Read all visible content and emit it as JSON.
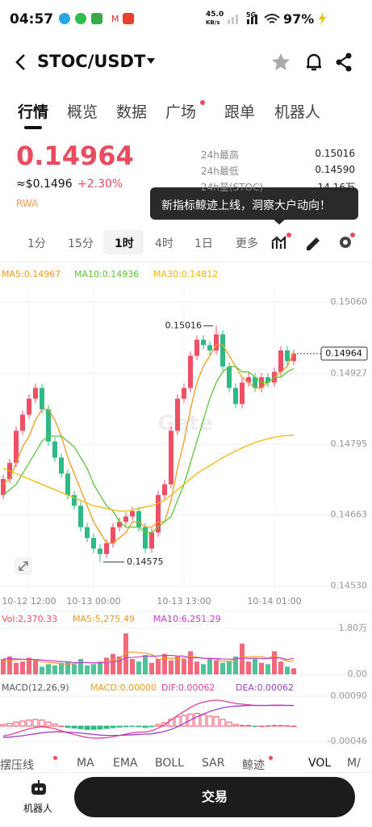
{
  "status_bar": {
    "time": "04:57",
    "net_speed": "45.0",
    "net_unit": "KB/s",
    "network": "5G",
    "battery": "97%"
  },
  "header": {
    "pair": "STOC/USDT"
  },
  "tabs": [
    "行情",
    "概览",
    "数据",
    "广场",
    "跟单",
    "机器人"
  ],
  "price": {
    "last": "0.14964",
    "usd": "≈$0.1496",
    "change": "+2.30%",
    "tag": "RWA"
  },
  "stats": [
    {
      "label": "24h最高",
      "value": "0.15016"
    },
    {
      "label": "24h最低",
      "value": "0.14590"
    },
    {
      "label": "24h量(STOC)",
      "value": "14.16万"
    }
  ],
  "tooltip": "新指标鲸迹上线，洞察大户动向！",
  "timeframes": [
    "1分",
    "15分",
    "1时",
    "4时",
    "1日",
    "更多"
  ],
  "indicator_tabs": [
    "摆压线",
    "MA",
    "EMA",
    "BOLL",
    "SAR",
    "鲸迹",
    "VOL",
    "M/"
  ],
  "bottom": {
    "robot": "机器人",
    "trade": "交易"
  },
  "chart_data": [
    {
      "type": "candlestick",
      "watermark": "Gate",
      "up_color": "#ef4f64",
      "down_color": "#2fb985",
      "grid": true,
      "categories": [
        null,
        null,
        null,
        null,
        "10-12 12:00",
        null,
        null,
        null,
        null,
        null,
        null,
        null,
        null,
        null,
        "10-13 00:00",
        null,
        null,
        null,
        null,
        null,
        null,
        null,
        null,
        null,
        null,
        null,
        null,
        null,
        "10-13 13:00",
        null,
        null,
        null,
        null,
        null,
        null,
        null,
        null,
        null,
        null,
        null,
        null,
        null,
        "10-14 01:00",
        null,
        null,
        null
      ],
      "open": [
        0.147,
        0.1473,
        0.1476,
        0.1482,
        0.1485,
        0.1488,
        0.149,
        0.1486,
        0.148,
        0.1477,
        0.1474,
        0.147,
        0.1468,
        0.1464,
        0.1462,
        0.146,
        0.1459,
        0.1461,
        0.1464,
        0.1465,
        0.1466,
        0.1467,
        0.1464,
        0.146,
        0.1463,
        0.147,
        0.1472,
        0.1482,
        0.1488,
        0.149,
        0.1496,
        0.1499,
        0.1498,
        0.1497,
        0.15,
        0.1494,
        0.149,
        0.1487,
        0.1491,
        0.1492,
        0.149,
        0.1492,
        0.1491,
        0.1493,
        0.1497,
        0.1495
      ],
      "high": [
        0.14738,
        0.14768,
        0.14828,
        0.14858,
        0.14888,
        0.14908,
        0.14908,
        0.14868,
        0.14808,
        0.14778,
        0.14748,
        0.14708,
        0.14688,
        0.14648,
        0.14628,
        0.14608,
        0.14618,
        0.14648,
        0.14658,
        0.14668,
        0.14678,
        0.14678,
        0.14648,
        0.14638,
        0.14708,
        0.14728,
        0.14828,
        0.14888,
        0.14908,
        0.14968,
        0.14998,
        0.14998,
        0.14988,
        0.15016,
        0.15008,
        0.14948,
        0.14908,
        0.14918,
        0.14928,
        0.14928,
        0.14928,
        0.14928,
        0.14938,
        0.14978,
        0.14978,
        0.14972
      ],
      "low": [
        0.14692,
        0.14722,
        0.14752,
        0.14812,
        0.14842,
        0.14872,
        0.14852,
        0.14792,
        0.14762,
        0.14732,
        0.14692,
        0.14672,
        0.14632,
        0.14612,
        0.14592,
        0.14575,
        0.14582,
        0.14602,
        0.14632,
        0.14642,
        0.14652,
        0.14632,
        0.14592,
        0.14592,
        0.14622,
        0.14692,
        0.14712,
        0.14812,
        0.14872,
        0.14892,
        0.14952,
        0.14972,
        0.14962,
        0.14962,
        0.14932,
        0.14892,
        0.14862,
        0.14862,
        0.14902,
        0.14892,
        0.14892,
        0.14902,
        0.14902,
        0.14922,
        0.14942,
        0.14942
      ],
      "close": [
        0.1473,
        0.1476,
        0.1482,
        0.1485,
        0.1488,
        0.149,
        0.1486,
        0.148,
        0.1477,
        0.1474,
        0.147,
        0.1468,
        0.1464,
        0.1462,
        0.146,
        0.1459,
        0.1461,
        0.1464,
        0.1465,
        0.1466,
        0.1467,
        0.1464,
        0.146,
        0.1463,
        0.147,
        0.1472,
        0.1482,
        0.1488,
        0.149,
        0.1496,
        0.1499,
        0.1498,
        0.1497,
        0.15,
        0.1494,
        0.149,
        0.1487,
        0.1491,
        0.1492,
        0.149,
        0.1492,
        0.1491,
        0.1493,
        0.1497,
        0.1495,
        0.14964
      ],
      "series": [
        {
          "name": "MA5:0.14967",
          "color": "#f39a1e",
          "values": [
            0.1472,
            0.1473,
            0.1476,
            0.1479,
            0.1481,
            0.1484,
            0.1486,
            0.1486,
            0.1484,
            0.1481,
            0.1477,
            0.1474,
            0.1471,
            0.1468,
            0.1465,
            0.1463,
            0.1461,
            0.1461,
            0.1462,
            0.1463,
            0.1465,
            0.1465,
            0.1464,
            0.1464,
            0.1465,
            0.1465,
            0.1469,
            0.1475,
            0.148,
            0.1486,
            0.1491,
            0.1494,
            0.1496,
            0.1498,
            0.1498,
            0.1496,
            0.1494,
            0.1492,
            0.1491,
            0.149,
            0.149,
            0.1491,
            0.1492,
            0.1493,
            0.1494,
            0.14967
          ]
        },
        {
          "name": "MA10:0.14936",
          "color": "#5cc53a",
          "values": [
            0.147,
            0.1471,
            0.1472,
            0.1474,
            0.1476,
            0.1478,
            0.148,
            0.1481,
            0.1481,
            0.1481,
            0.148,
            0.1479,
            0.1477,
            0.1475,
            0.1472,
            0.147,
            0.1468,
            0.1467,
            0.1465,
            0.1464,
            0.1464,
            0.1464,
            0.1463,
            0.1463,
            0.1464,
            0.1465,
            0.1466,
            0.1469,
            0.1472,
            0.1476,
            0.148,
            0.1484,
            0.1488,
            0.1491,
            0.1493,
            0.1494,
            0.1494,
            0.1493,
            0.1493,
            0.1492,
            0.1491,
            0.1491,
            0.1492,
            0.1492,
            0.1493,
            0.14936
          ]
        },
        {
          "name": "MA30:0.14812",
          "color": "#f5b70a",
          "values": [
            0.1475,
            0.14745,
            0.1474,
            0.14735,
            0.1473,
            0.14725,
            0.1472,
            0.14715,
            0.1471,
            0.14705,
            0.147,
            0.14695,
            0.1469,
            0.14685,
            0.1468,
            0.14678,
            0.14675,
            0.14672,
            0.1467,
            0.1467,
            0.14672,
            0.14675,
            0.14678,
            0.1468,
            0.14685,
            0.1469,
            0.147,
            0.1471,
            0.1472,
            0.1473,
            0.1474,
            0.14748,
            0.14755,
            0.14762,
            0.1477,
            0.14776,
            0.14782,
            0.14788,
            0.14793,
            0.14798,
            0.14802,
            0.14805,
            0.14808,
            0.1481,
            0.14811,
            0.14812
          ]
        }
      ],
      "ylim": [
        0.14516,
        0.15089
      ],
      "yticks": [
        {
          "value": 0.1506,
          "label": "0.15060"
        },
        {
          "value": 0.14927,
          "label": "0.14927"
        },
        {
          "value": 0.14795,
          "label": "0.14795"
        },
        {
          "value": 0.14663,
          "label": "0.14663"
        },
        {
          "value": 0.1453,
          "label": "0.14530"
        }
      ],
      "annotations": [
        {
          "text": "0.15016"
        },
        {
          "text": "0.14575"
        }
      ],
      "last_label": "0.14964"
    },
    {
      "type": "volume",
      "grid": true,
      "series": [
        {
          "name": "Vol:2,370.33",
          "color": "#ef4f64",
          "values": [
            6000,
            7000,
            4500,
            5000,
            6500,
            5500,
            3000,
            4000,
            3500,
            4500,
            5000,
            4000,
            6000,
            3500,
            4000,
            5000,
            6500,
            8000,
            7000,
            16000,
            6000,
            5000,
            7500,
            4500,
            6000,
            8000,
            5500,
            7000,
            6000,
            9000,
            5000,
            4000,
            6500,
            5500,
            4500,
            5000,
            7000,
            12000,
            5000,
            6000,
            4500,
            4000,
            9000,
            5000,
            3000,
            2370.33
          ]
        },
        {
          "name": "MA5:5,275.49",
          "color": "#f39a1e",
          "values": [
            5000,
            5500,
            5700,
            5800,
            5800,
            5700,
            4900,
            4700,
            4500,
            4100,
            4000,
            4200,
            4600,
            4600,
            4500,
            4500,
            5000,
            5600,
            5800,
            8500,
            8700,
            8500,
            8300,
            7800,
            5800,
            6200,
            6300,
            6200,
            6400,
            7100,
            6700,
            6300,
            6100,
            6000,
            5100,
            5100,
            5700,
            6800,
            6800,
            7000,
            6900,
            6300,
            7300,
            6300,
            5100,
            5275.49
          ]
        },
        {
          "name": "MA10:6,251.29",
          "color": "#c43bd0",
          "values": [
            6000,
            6100,
            6000,
            5900,
            5900,
            5800,
            5600,
            5400,
            5200,
            5000,
            4900,
            4600,
            4600,
            4600,
            4500,
            4500,
            4600,
            4900,
            5200,
            6500,
            6600,
            6800,
            7200,
            7100,
            7200,
            7400,
            7400,
            7200,
            7100,
            6400,
            6500,
            6300,
            6200,
            6200,
            6000,
            5900,
            6000,
            6400,
            6200,
            6300,
            6100,
            6200,
            6500,
            6400,
            5800,
            6251.29
          ]
        }
      ],
      "ylim": [
        0,
        20500
      ],
      "yticks": [
        {
          "value": 18000,
          "label": "1.80万"
        },
        {
          "value": 0,
          "label": "0.00"
        }
      ]
    },
    {
      "type": "macd",
      "title": "MACD(12,26,9)",
      "grid": true,
      "series": [
        {
          "name": "MACD:0.00000",
          "color": "#f39a1e",
          "values": [
            5e-05,
            8e-05,
            0.00012,
            0.00015,
            0.00018,
            0.0002,
            0.00018,
            0.00012,
            6e-05,
            0,
            -4e-05,
            -6e-05,
            -8e-05,
            -0.0001,
            -0.0001,
            -9e-05,
            -7e-05,
            -5e-05,
            -3e-05,
            -2e-05,
            -1e-05,
            -2e-05,
            -4e-05,
            -2e-05,
            5e-05,
            0.0001,
            0.0002,
            0.00028,
            0.00032,
            0.00036,
            0.00038,
            0.00035,
            0.0003,
            0.00028,
            0.0002,
            0.00012,
            5e-05,
            2e-05,
            2e-05,
            -1e-05,
            0,
            1e-05,
            2e-05,
            2e-05,
            1e-05,
            0
          ]
        },
        {
          "name": "DIF:0.00062",
          "color": "#e0409a",
          "values": [
            -0.0003,
            -0.00026,
            -0.0002,
            -0.00014,
            -8e-05,
            -4e-05,
            -2e-05,
            -4e-05,
            -8e-05,
            -0.00014,
            -0.0002,
            -0.00025,
            -0.0003,
            -0.00034,
            -0.00036,
            -0.00036,
            -0.00035,
            -0.00032,
            -0.00028,
            -0.00024,
            -0.0002,
            -0.00018,
            -0.00018,
            -0.00014,
            -6e-05,
            4e-05,
            0.00018,
            0.00032,
            0.00044,
            0.00056,
            0.00066,
            0.00072,
            0.00076,
            0.00078,
            0.00076,
            0.00072,
            0.00068,
            0.00066,
            0.00064,
            0.00062,
            0.00062,
            0.00062,
            0.00063,
            0.00063,
            0.00062,
            0.00062
          ]
        },
        {
          "name": "DEA:0.00062",
          "color": "#9b3fd0",
          "values": [
            -0.00034,
            -0.00033,
            -0.00031,
            -0.00029,
            -0.00026,
            -0.00023,
            -0.0002,
            -0.00018,
            -0.00017,
            -0.00017,
            -0.00018,
            -0.00019,
            -0.00021,
            -0.00023,
            -0.00025,
            -0.00027,
            -0.00028,
            -0.00028,
            -0.00028,
            -0.00027,
            -0.00026,
            -0.00025,
            -0.00024,
            -0.00023,
            -0.0002,
            -0.00016,
            -0.0001,
            -2e-05,
            8e-05,
            0.00018,
            0.00028,
            0.00036,
            0.00044,
            0.0005,
            0.00055,
            0.00058,
            0.0006,
            0.00061,
            0.00062,
            0.00062,
            0.00062,
            0.00062,
            0.00062,
            0.00062,
            0.00062,
            0.00062
          ]
        }
      ],
      "ylim": [
        -0.00075,
        0.00119
      ],
      "yticks": [
        {
          "value": 0.0009,
          "label": "0.00090"
        },
        {
          "value": -0.00046,
          "label": "-0.00046"
        }
      ]
    }
  ]
}
